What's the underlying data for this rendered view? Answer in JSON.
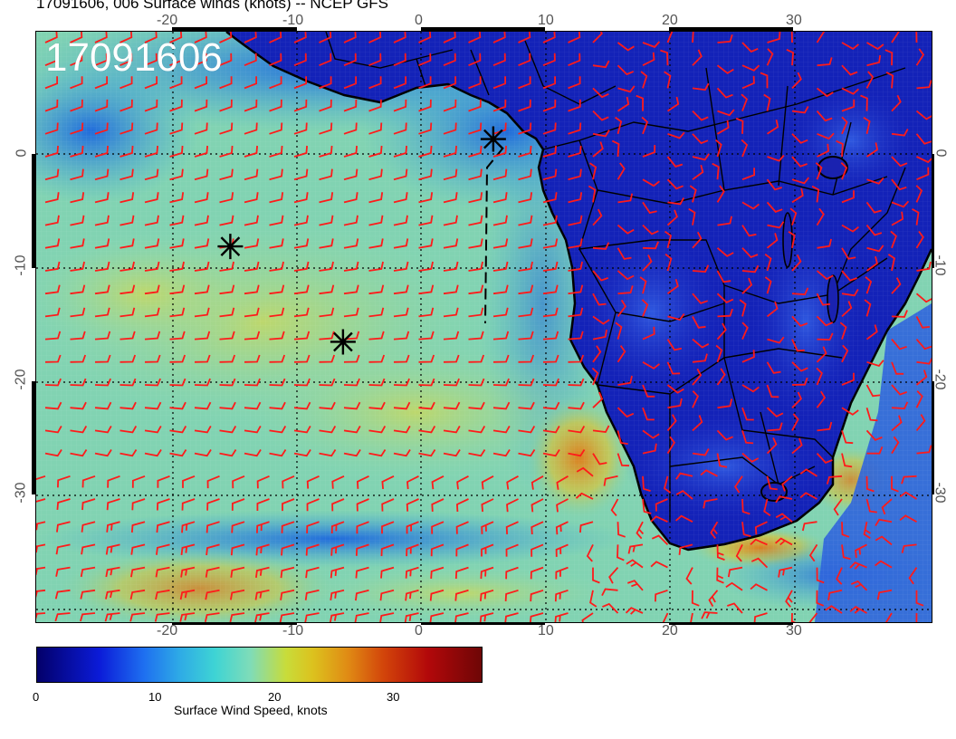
{
  "header": {
    "title": "17091606, 006 Surface winds (knots) -- NCEP GFS"
  },
  "map": {
    "stamp": "17091606",
    "lon_labels_top": [
      "-20",
      "-10",
      "0",
      "10",
      "20",
      "30"
    ],
    "lon_labels_bottom": [
      "-20",
      "-10",
      "0",
      "10",
      "20",
      "30"
    ],
    "lat_labels_left": [
      "0",
      "-10",
      "-20",
      "-30"
    ],
    "lat_labels_right": [
      "0",
      "-10",
      "-20",
      "-30"
    ],
    "extent": {
      "lon_min": -30,
      "lon_max": 41.5,
      "lat_min": -40,
      "lat_max": 9.5
    },
    "barb_color": "#ff1a1a",
    "markers": [
      {
        "name": "marker-1",
        "lon": 6.5,
        "lat": 0.5
      },
      {
        "name": "marker-2",
        "lon": -14.5,
        "lat": -8.5
      },
      {
        "name": "marker-3",
        "lon": -5.5,
        "lat": -16.5
      }
    ]
  },
  "colorbar": {
    "tick_labels": [
      "0",
      "10",
      "20",
      "30"
    ],
    "title": "Surface Wind Speed, knots"
  }
}
